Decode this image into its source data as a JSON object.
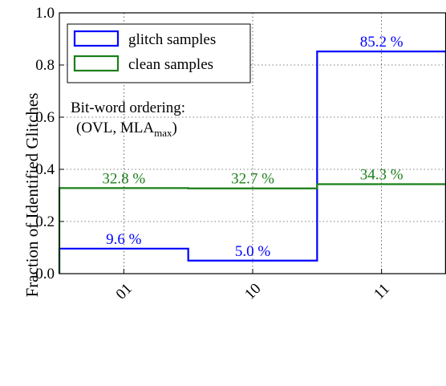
{
  "chart_data": {
    "type": "line",
    "step": true,
    "title": "",
    "xlabel": "",
    "ylabel": "Fraction of Identified Glitches",
    "ylim": [
      0,
      1
    ],
    "yticks": [
      "0.0",
      "0.2",
      "0.4",
      "0.6",
      "0.8",
      "1.0"
    ],
    "categories": [
      "01",
      "10",
      "11"
    ],
    "series": [
      {
        "name": "glitch samples",
        "color": "#0000ff",
        "values": [
          0.096,
          0.05,
          0.852
        ],
        "labels": [
          "9.6 %",
          "5.0 %",
          "85.2 %"
        ]
      },
      {
        "name": "clean samples",
        "color": "#1a7f1a",
        "values": [
          0.328,
          0.327,
          0.343
        ],
        "labels": [
          "32.8 %",
          "32.7 %",
          "34.3 %"
        ]
      }
    ],
    "legend_position": "top-left",
    "annotation": {
      "line1": "Bit-word ordering:",
      "line2_prefix": "(OVL, MLA",
      "line2_sub": "max",
      "line2_suffix": ")"
    },
    "grid": true
  }
}
